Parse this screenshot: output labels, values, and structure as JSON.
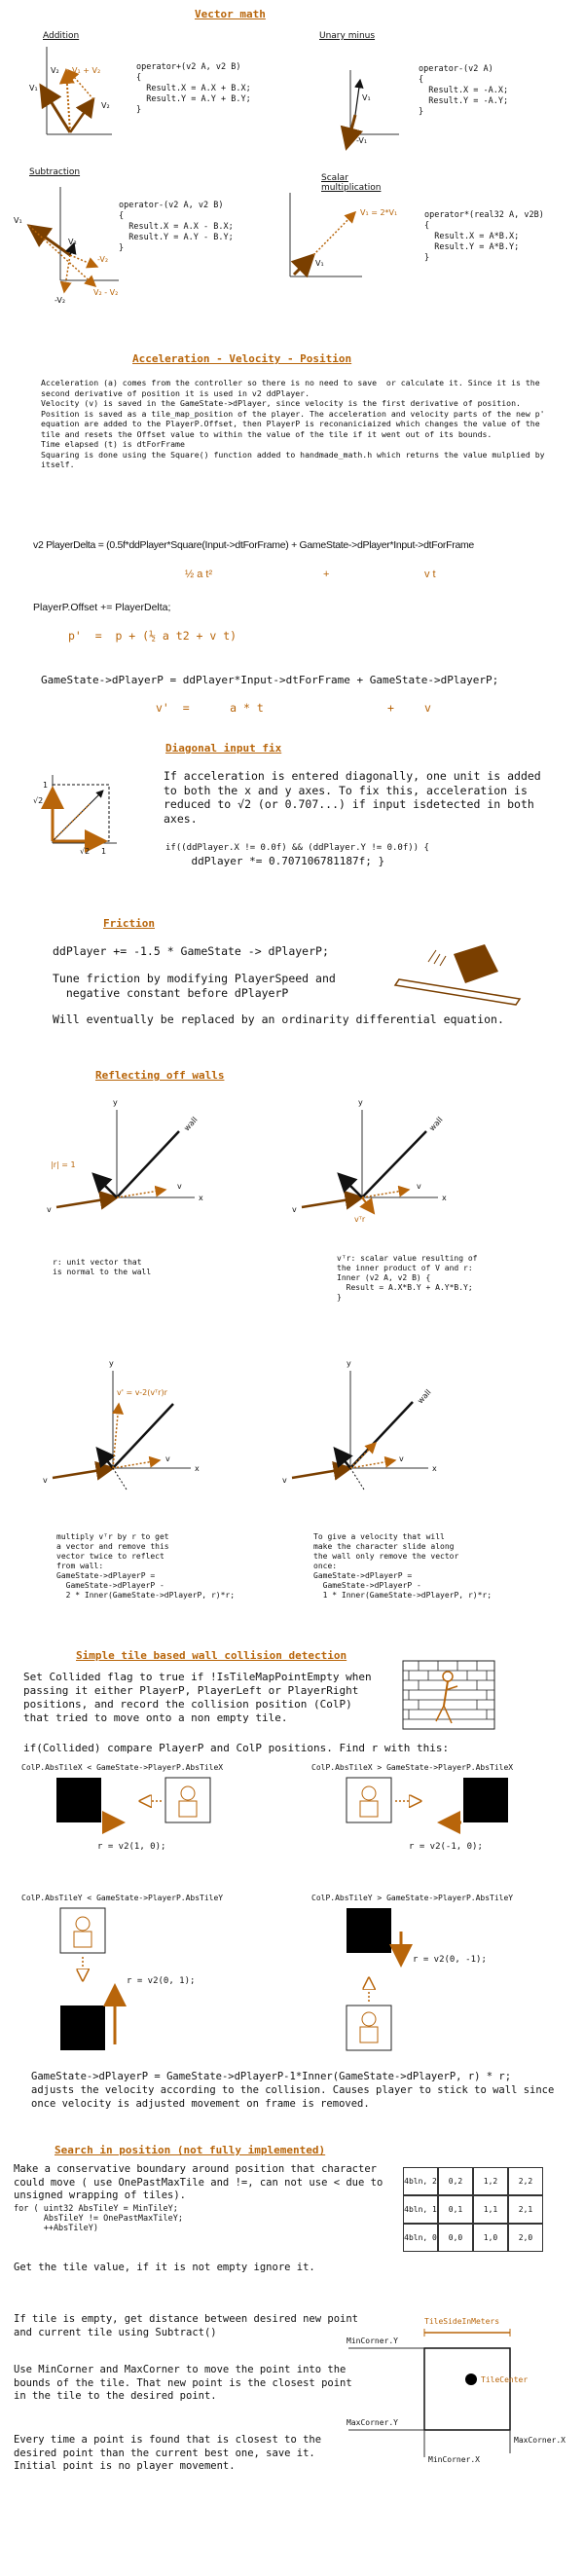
{
  "colors": {
    "accent": "#b8650a",
    "ink": "#111111",
    "wall": "#222222",
    "tile": "#000000"
  },
  "vector_math": {
    "title": "Vector math",
    "addition": {
      "label": "Addition",
      "code": "operator+(v2 A, v2 B)\n{\n  Result.X = A.X + B.X;\n  Result.Y = A.Y + B.Y;\n}",
      "v1": "V₁",
      "v2": "V₂",
      "sum": "V₁ + V₂",
      "v2b": "V₂"
    },
    "unary": {
      "label": "Unary minus",
      "code": "operator-(v2 A)\n{\n  Result.X = -A.X;\n  Result.Y = -A.Y;\n}",
      "v1": "V₁",
      "neg": "-V₁"
    },
    "subtraction": {
      "label": "Subtraction",
      "code": "operator-(v2 A, v2 B)\n{\n  Result.X = A.X - B.X;\n  Result.Y = A.Y - B.Y;\n}",
      "v1": "V₁",
      "v2": "V₂",
      "negv2": "-V₂",
      "negv2b": "-V₂",
      "diff": "V₂ - V₂"
    },
    "scalar": {
      "label": "Scalar\nmultiplication",
      "code": "operator*(real32 A, v2B)\n{\n  Result.X = A*B.X;\n  Result.Y = A*B.Y;\n}",
      "v1": "V₁",
      "scaled": "V₁ = 2*V₁"
    }
  },
  "avp": {
    "title": "Acceleration - Velocity - Position",
    "text": "Acceleration (a) comes from the controller so there is no need to save  or calculate it. Since it is the second derivative of position it is used in v2 ddPlayer.\nVelocity (v) is saved in the GameState->dPlayer, since velocity is the first derivative of position.\nPosition is saved as a tile_map_position of the player. The acceleration and velocity parts of the new p' equation are added to the PlayerP.Offset, then PlayerP is reconaniciaized which changes the value of the tile and resets the Offset value to within the value of the tile if it went out of its bounds.\nTime elapsed (t) is dtForFrame\nSquaring is done using the Square() function added to handmade_math.h which returns the value mulplied by itself.",
    "delta_eq": "v2 PlayerDelta = (0.5f*ddPlayer*Square(Input->dtForFrame) + GameState->dPlayer*Input->dtForFrame",
    "delta_a": "½ a t²",
    "delta_plus": "+",
    "delta_vt": "v t",
    "offset_eq": "PlayerP.Offset += PlayerDelta;",
    "p_eq": "p'  =  p + (½ a t2 + v t)",
    "dp_eq": "GameState->dPlayerP = ddPlayer*Input->dtForFrame + GameState->dPlayerP;",
    "v_eq": "v'  =      a * t",
    "v_plus": "+",
    "v_v": "v"
  },
  "diagonal": {
    "title": "Diagonal input fix",
    "text": "If acceleration is entered diagonally, one unit is added to both the x and y axes. To fix this, acceleration is reduced to √2 (or 0.707...) if input isdetected in both axes.",
    "code1": "if((ddPlayer.X != 0.0f) && (ddPlayer.Y != 0.0f)) {",
    "code2": "    ddPlayer *= 0.707106781187f; }",
    "lbl_one_y": "1",
    "lbl_root_y": "√2",
    "lbl_root_x": "√2",
    "lbl_one_x": "1"
  },
  "friction": {
    "title": "Friction",
    "eq": "ddPlayer += -1.5 * GameState -> dPlayerP;",
    "tune": "Tune friction by modifying PlayerSpeed and\n  negative constant before dPlayerP",
    "replace": "Will eventually be replaced by an ordinarity differential equation."
  },
  "walls": {
    "title": "Reflecting off walls",
    "d1": {
      "y": "y",
      "x": "x",
      "wall": "wall",
      "v": "v",
      "v2": "v",
      "r": "|r| = 1",
      "caption": "r: unit vector that\nis normal to the wall"
    },
    "d2": {
      "y": "y",
      "x": "x",
      "wall": "wall",
      "v": "v",
      "v2": "v",
      "vr": "vᵀr",
      "caption": "vᵀr: scalar value resulting of\nthe inner product of V and r:\nInner (v2 A, v2 B) {\n  Result = A.X*B.Y + A.Y*B.Y;\n}"
    },
    "d3": {
      "y": "y",
      "x": "x",
      "v": "v",
      "v2": "v",
      "vprime": "v' = v-2(vᵀr)r",
      "caption": "multiply vᵀr by r to get\na vector and remove this\nvector twice to reflect\nfrom wall:\nGameState->dPlayerP =\n  GameState->dPlayerP -\n  2 * Inner(GameState->dPlayerP, r)*r;"
    },
    "d4": {
      "y": "y",
      "x": "x",
      "wall": "wall",
      "v": "v",
      "v2": "v",
      "caption": "To give a velocity that will\nmake the character slide along\nthe wall only remove the vector\nonce:\nGameState->dPlayerP =\n  GameState->dPlayerP -\n  1 * Inner(GameState->dPlayerP, r)*r;"
    }
  },
  "collision": {
    "title": "Simple tile based wall collision detection",
    "text1": "Set Collided flag to true if !IsTileMapPointEmpty when passing it either PlayerP, PlayerLeft or PlayerRight positions, and record the collision position (ColP) that tried to move onto a non empty tile.",
    "text2": "if(Collided) compare PlayerP and ColP positions. Find r with this:",
    "c1": {
      "cond": "ColP.AbsTileX < GameState->PlayerP.AbsTileX",
      "r": "r = v2(1, 0);"
    },
    "c2": {
      "cond": "ColP.AbsTileX > GameState->PlayerP.AbsTileX",
      "r": "r = v2(-1, 0);"
    },
    "c3": {
      "cond": "ColP.AbsTileY < GameState->PlayerP.AbsTileY",
      "r": "r = v2(0, 1);"
    },
    "c4": {
      "cond": "ColP.AbsTileY > GameState->PlayerP.AbsTileY",
      "r": "r = v2(0, -1);"
    },
    "final_eq": "GameState->dPlayerP = GameState->dPlayerP-1*Inner(GameState->dPlayerP, r) * r;",
    "final_text": "adjusts the velocity according to the collision. Causes player to stick to wall since once velocity is adjusted movement on frame is removed."
  },
  "search": {
    "title": "Search in position (not fully implemented)",
    "text1": "Make a conservative boundary around position that character could move ( use OnePastMaxTile and !=, can not use < due to unsigned wrapping of tiles).",
    "code": "for ( uint32 AbsTileY = MinTileY;\n      AbsTileY != OnePastMaxTileY;\n      ++AbsTileY)",
    "grid": [
      [
        "4bln, 2",
        "0,2",
        "1,2",
        "2,2"
      ],
      [
        "4bln, 1",
        "0,1",
        "1,1",
        "2,1"
      ],
      [
        "4bln, 0",
        "0,0",
        "1,0",
        "2,0"
      ]
    ],
    "text2": "Get the tile value, if it is not empty ignore it.",
    "text3": "If tile is empty, get distance between desired new point and current tile using Subtract()",
    "text4": "Use MinCorner and MaxCorner to move the point into the bounds of the tile. That new point is the closest point in the tile to the desired point.",
    "text5": "Every time a point is found that is closest to the desired point than the current best one, save it. Initial point is no player movement.",
    "d_size": "TileSideInMeters",
    "d_miny": "MinCorner.Y",
    "d_maxy": "MaxCorner.Y",
    "d_minx": "MinCorner.X",
    "d_maxx": "MaxCorner.X",
    "d_center": "TileCenter"
  }
}
